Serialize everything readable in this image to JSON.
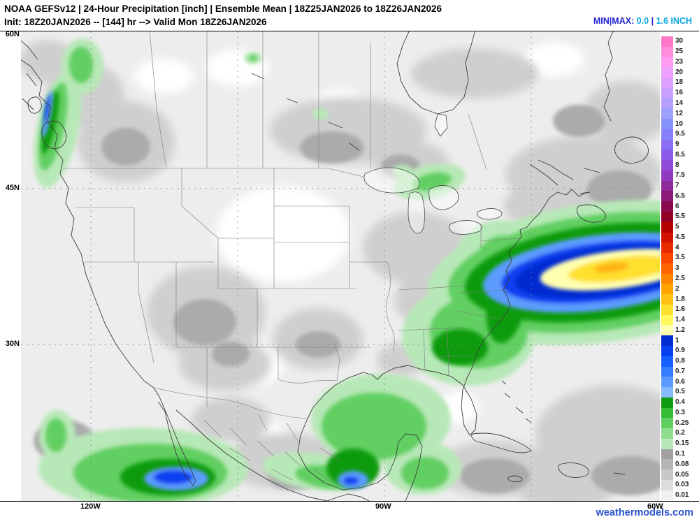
{
  "header": {
    "line1": "NOAA GEFSv12 | 24-Hour Precipitation [inch] | Ensemble Mean | 18Z25JAN2026 to 18Z26JAN2026",
    "line2": "Init: 18Z20JAN2026 -- [144] hr --> Valid Mon 18Z26JAN2026",
    "minmax": {
      "label": "MIN|MAX:",
      "min": "0.0",
      "sep": "|",
      "max": "1.6 INCH",
      "label_color": "#2222d6",
      "value_color": "#0aa6e0"
    }
  },
  "map": {
    "lat_labels": [
      "60N",
      "45N",
      "30N"
    ],
    "lon_labels": [
      "120W",
      "90W",
      "60W"
    ],
    "units": "inch",
    "region": "North America"
  },
  "colorbar": {
    "levels": [
      {
        "value": "30",
        "color": "#ff78c8"
      },
      {
        "value": "25",
        "color": "#ff8cdc"
      },
      {
        "value": "23",
        "color": "#ff9bf0"
      },
      {
        "value": "20",
        "color": "#f0a0ff"
      },
      {
        "value": "18",
        "color": "#dca0ff"
      },
      {
        "value": "16",
        "color": "#c8a0ff"
      },
      {
        "value": "14",
        "color": "#b4a0ff"
      },
      {
        "value": "12",
        "color": "#a0a0ff"
      },
      {
        "value": "10",
        "color": "#8892fc"
      },
      {
        "value": "9.5",
        "color": "#8880fa"
      },
      {
        "value": "9",
        "color": "#8a6ef4"
      },
      {
        "value": "8.5",
        "color": "#8c5ce8"
      },
      {
        "value": "8",
        "color": "#8f4ad8"
      },
      {
        "value": "7.5",
        "color": "#9039c0"
      },
      {
        "value": "7",
        "color": "#8e2a9c"
      },
      {
        "value": "6.5",
        "color": "#8c1a78"
      },
      {
        "value": "6",
        "color": "#8a0a4e"
      },
      {
        "value": "5.5",
        "color": "#900024"
      },
      {
        "value": "5",
        "color": "#b40000"
      },
      {
        "value": "4.5",
        "color": "#d11300"
      },
      {
        "value": "4",
        "color": "#ea2b00"
      },
      {
        "value": "3.5",
        "color": "#fb4600"
      },
      {
        "value": "3",
        "color": "#ff6400"
      },
      {
        "value": "2.5",
        "color": "#ff8400"
      },
      {
        "value": "2",
        "color": "#ffa500"
      },
      {
        "value": "1.8",
        "color": "#ffc314"
      },
      {
        "value": "1.6",
        "color": "#ffe02e"
      },
      {
        "value": "1.4",
        "color": "#fff95e"
      },
      {
        "value": "1.2",
        "color": "#ffffb0"
      },
      {
        "value": "1",
        "color": "#022bd0"
      },
      {
        "value": "0.9",
        "color": "#0741f0"
      },
      {
        "value": "0.8",
        "color": "#1660ff"
      },
      {
        "value": "0.7",
        "color": "#357eff"
      },
      {
        "value": "0.6",
        "color": "#5c9bff"
      },
      {
        "value": "0.5",
        "color": "#87b9ff"
      },
      {
        "value": "0.4",
        "color": "#0f9b0f"
      },
      {
        "value": "0.3",
        "color": "#32bd32"
      },
      {
        "value": "0.25",
        "color": "#62cf62"
      },
      {
        "value": "0.2",
        "color": "#8fdc8f"
      },
      {
        "value": "0.15",
        "color": "#b7e8b7"
      },
      {
        "value": "0.1",
        "color": "#a0a0a0"
      },
      {
        "value": "0.08",
        "color": "#b4b4b4"
      },
      {
        "value": "0.05",
        "color": "#c8c8c8"
      },
      {
        "value": "0.03",
        "color": "#dcdcdc"
      },
      {
        "value": "0.01",
        "color": "#f0f0f0"
      }
    ]
  },
  "watermark": {
    "text": "weathermodels.com",
    "color": "#2a52cc"
  }
}
